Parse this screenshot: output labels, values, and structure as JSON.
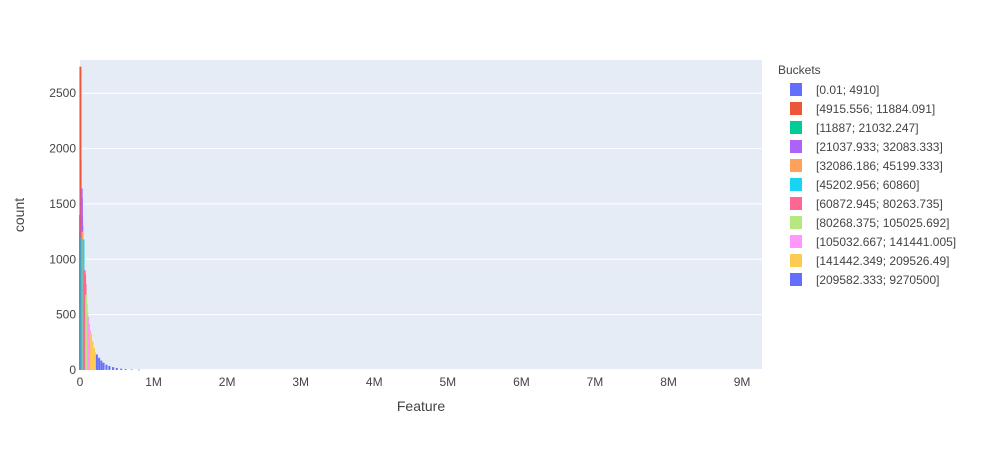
{
  "chart_data": {
    "type": "bar",
    "title": "",
    "xlabel": "Feature",
    "ylabel": "count",
    "xlim": [
      0,
      9270500
    ],
    "ylim": [
      0,
      2800
    ],
    "x_ticks": [
      {
        "value": 0,
        "label": "0"
      },
      {
        "value": 1000000,
        "label": "1M"
      },
      {
        "value": 2000000,
        "label": "2M"
      },
      {
        "value": 3000000,
        "label": "3M"
      },
      {
        "value": 4000000,
        "label": "4M"
      },
      {
        "value": 5000000,
        "label": "5M"
      },
      {
        "value": 6000000,
        "label": "6M"
      },
      {
        "value": 7000000,
        "label": "7M"
      },
      {
        "value": 8000000,
        "label": "8M"
      },
      {
        "value": 9000000,
        "label": "9M"
      }
    ],
    "y_ticks": [
      {
        "value": 0,
        "label": "0"
      },
      {
        "value": 500,
        "label": "500"
      },
      {
        "value": 1000,
        "label": "1000"
      },
      {
        "value": 1500,
        "label": "1500"
      },
      {
        "value": 2000,
        "label": "2000"
      },
      {
        "value": 2500,
        "label": "2500"
      }
    ],
    "grid": true,
    "legend": {
      "title": "Buckets",
      "position": "right"
    },
    "series": [
      {
        "name": "[0.01; 4910]",
        "color": "#636efa",
        "x": [
          2000,
          4000
        ],
        "values": [
          1400,
          1250
        ]
      },
      {
        "name": "[4915.556; 11884.091]",
        "color": "#EF553B",
        "x": [
          6000,
          8000,
          10000
        ],
        "values": [
          2740,
          1900,
          1500
        ]
      },
      {
        "name": "[11887; 21032.247]",
        "color": "#00cc96",
        "x": [
          13000,
          16000,
          19000
        ],
        "values": [
          1200,
          1100,
          1000
        ]
      },
      {
        "name": "[21037.933; 32083.333]",
        "color": "#ab63fa",
        "x": [
          22000,
          25000,
          28000,
          31000
        ],
        "values": [
          1640,
          1550,
          1380,
          1300
        ]
      },
      {
        "name": "[32086.186; 45199.333]",
        "color": "#FFA15A",
        "x": [
          34000,
          38000,
          42000
        ],
        "values": [
          1250,
          1120,
          1000
        ]
      },
      {
        "name": "[45202.956; 60860]",
        "color": "#19d3f3",
        "x": [
          47000,
          51000,
          55000,
          59000
        ],
        "values": [
          1180,
          900,
          820,
          700
        ]
      },
      {
        "name": "[60872.945; 80263.735]",
        "color": "#FF6692",
        "x": [
          63000,
          69000,
          75000
        ],
        "values": [
          900,
          860,
          780
        ]
      },
      {
        "name": "[80268.375; 105025.692]",
        "color": "#B6E880",
        "x": [
          84000,
          92000,
          100000
        ],
        "values": [
          680,
          600,
          520
        ]
      },
      {
        "name": "[105032.667; 141441.005]",
        "color": "#FF97FF",
        "x": [
          110000,
          122000,
          134000
        ],
        "values": [
          480,
          420,
          360
        ]
      },
      {
        "name": "[141442.349; 209526.49]",
        "color": "#FECB52",
        "x": [
          150000,
          170000,
          190000,
          205000
        ],
        "values": [
          330,
          260,
          200,
          160
        ]
      },
      {
        "name": "[209582.333; 9270500]",
        "color": "#636efa",
        "x": [
          230000,
          260000,
          290000,
          320000,
          360000,
          400000,
          450000,
          500000,
          560000,
          620000,
          700000,
          800000
        ],
        "values": [
          140,
          110,
          85,
          65,
          48,
          36,
          26,
          18,
          12,
          8,
          5,
          3
        ]
      }
    ]
  }
}
